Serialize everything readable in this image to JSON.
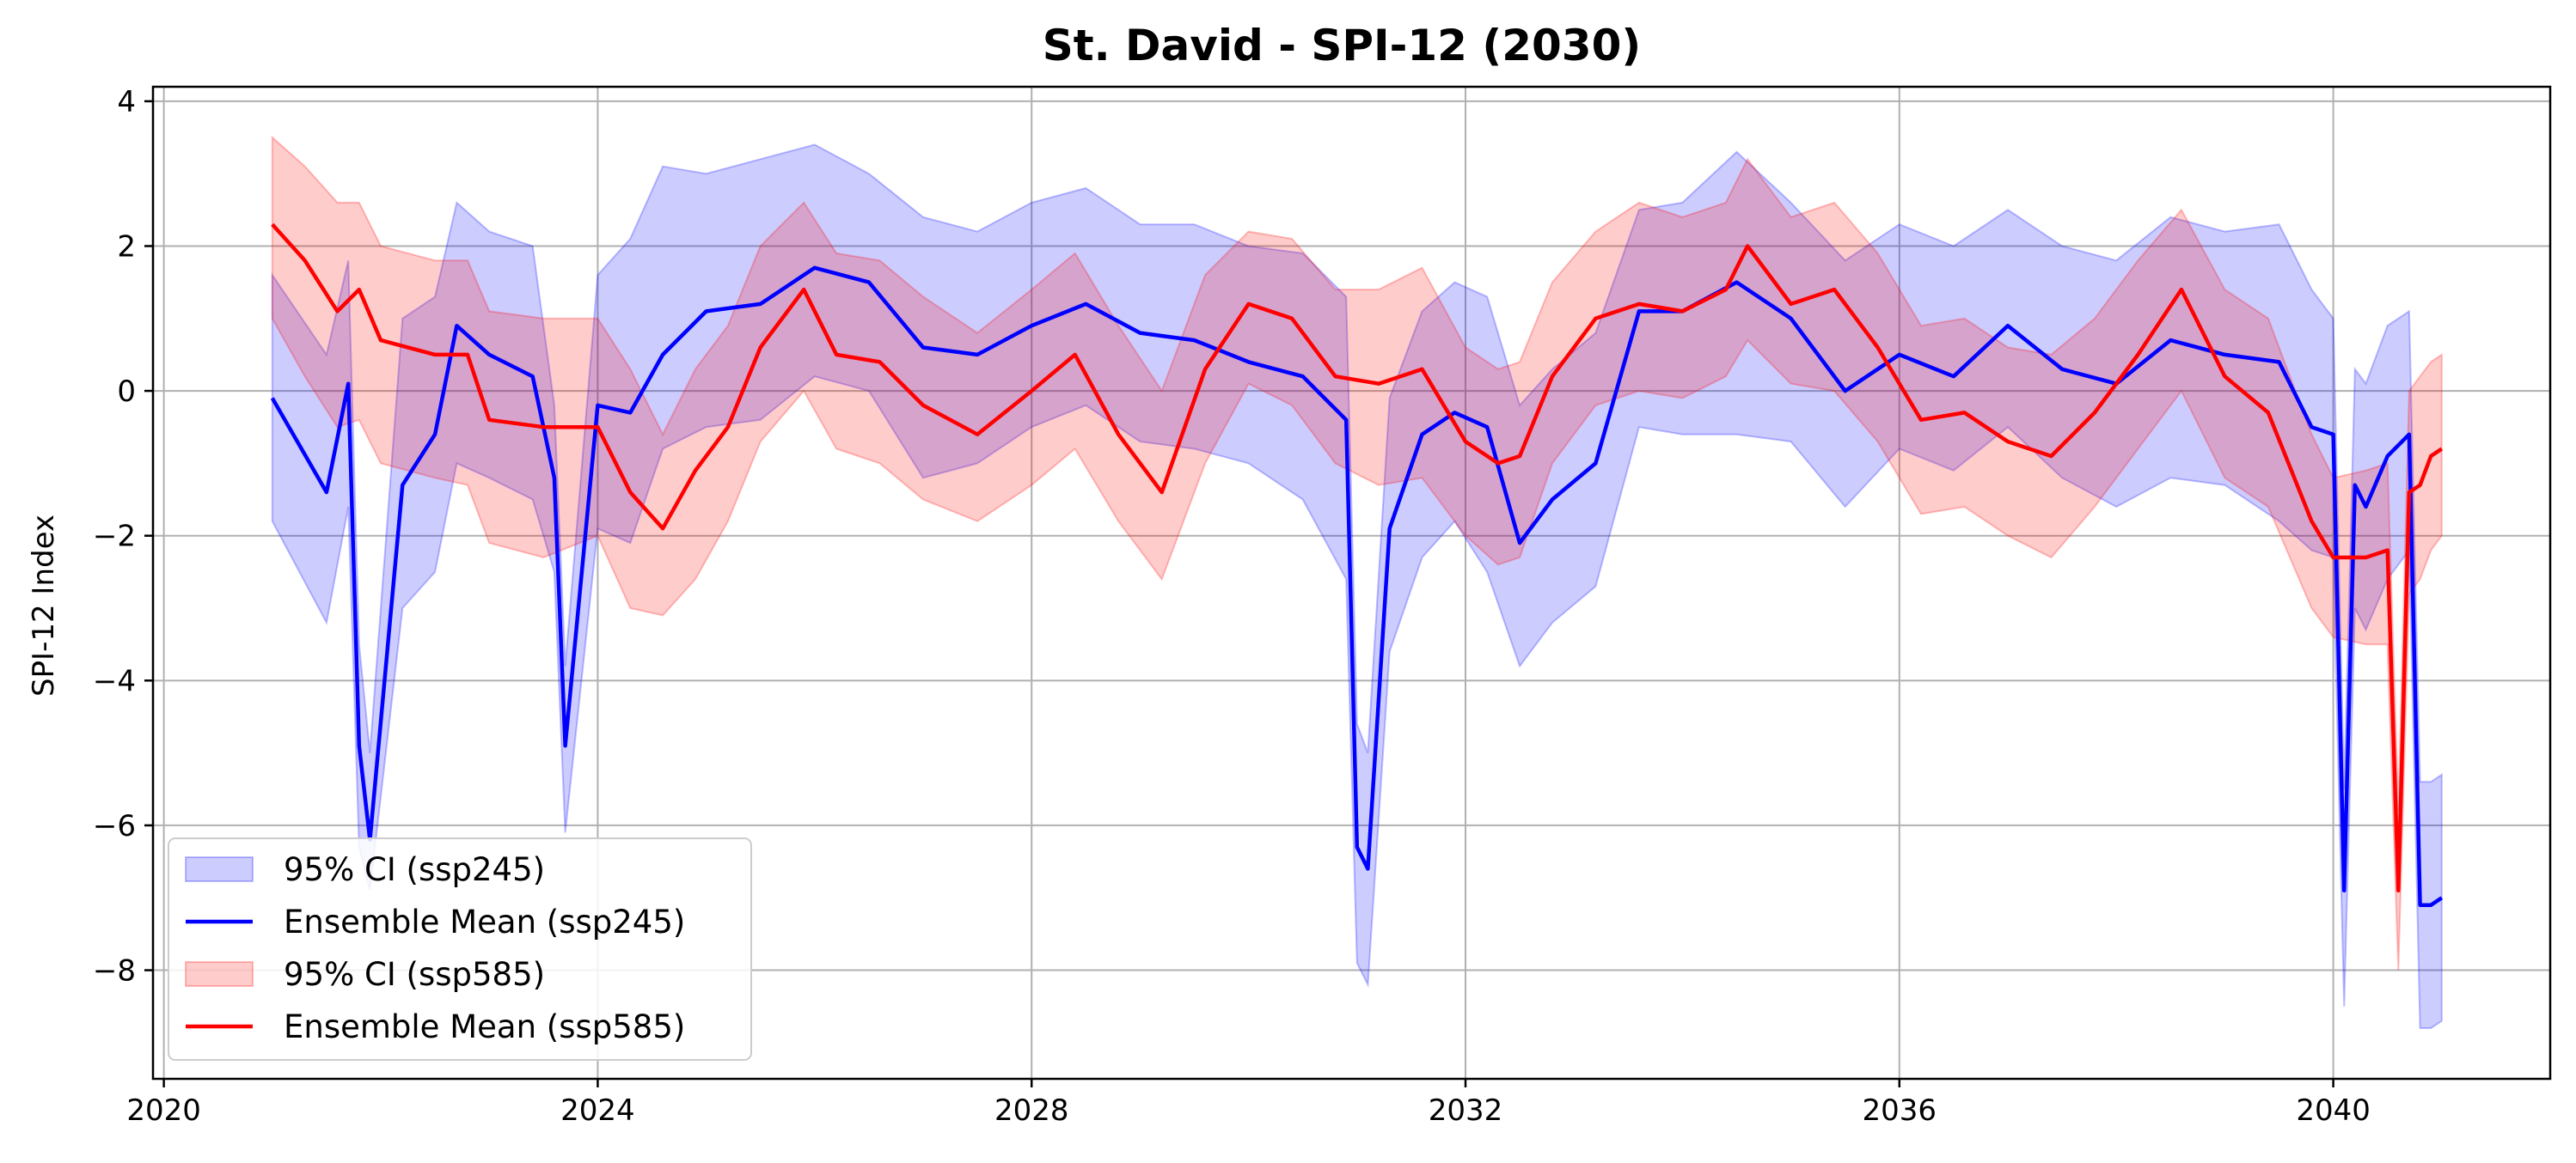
{
  "chart_data": {
    "type": "line",
    "title": "St. David - SPI-12 (2030)",
    "xlabel": "",
    "ylabel": "SPI-12 Index",
    "xlim": [
      2019.9,
      2042.0
    ],
    "ylim": [
      -9.5,
      4.2
    ],
    "x_ticks": [
      2020,
      2024,
      2028,
      2032,
      2036,
      2040
    ],
    "x_tick_labels": [
      "2020",
      "2024",
      "2028",
      "2032",
      "2036",
      "2040"
    ],
    "y_ticks": [
      4,
      2,
      0,
      -2,
      -4,
      -6,
      -8
    ],
    "y_tick_labels": [
      "4",
      "2",
      "0",
      "−2",
      "−4",
      "−6",
      "−8"
    ],
    "grid": true,
    "legend_position": "lower-left",
    "legend": [
      {
        "label": "95% CI (ssp245)",
        "kind": "band",
        "color": "#0000ff"
      },
      {
        "label": "Ensemble Mean (ssp245)",
        "kind": "line",
        "color": "#0000ff"
      },
      {
        "label": "95% CI (ssp585)",
        "kind": "band",
        "color": "#ff0000"
      },
      {
        "label": "Ensemble Mean (ssp585)",
        "kind": "line",
        "color": "#ff0000"
      }
    ],
    "series": [
      {
        "name": "Ensemble Mean (ssp245)",
        "color": "#0000ff",
        "x": [
          2021.0,
          2021.5,
          2021.7,
          2021.8,
          2021.9,
          2022.2,
          2022.5,
          2022.7,
          2023.0,
          2023.4,
          2023.6,
          2023.7,
          2024.0,
          2024.3,
          2024.6,
          2025.0,
          2025.5,
          2026.0,
          2026.5,
          2027.0,
          2027.5,
          2028.0,
          2028.5,
          2029.0,
          2029.5,
          2030.0,
          2030.5,
          2030.9,
          2031.0,
          2031.1,
          2031.3,
          2031.6,
          2031.9,
          2032.2,
          2032.5,
          2032.8,
          2033.2,
          2033.6,
          2034.0,
          2034.5,
          2035.0,
          2035.5,
          2036.0,
          2036.5,
          2037.0,
          2037.5,
          2038.0,
          2038.5,
          2039.0,
          2039.5,
          2039.8,
          2040.0,
          2040.1,
          2040.2,
          2040.3,
          2040.5,
          2040.7,
          2040.8,
          2040.9,
          2041.0
        ],
        "y": [
          -0.1,
          -1.4,
          0.1,
          -4.9,
          -6.2,
          -1.3,
          -0.6,
          0.9,
          0.5,
          0.2,
          -1.2,
          -4.9,
          -0.2,
          -0.3,
          0.5,
          1.1,
          1.2,
          1.7,
          1.5,
          0.6,
          0.5,
          0.9,
          1.2,
          0.8,
          0.7,
          0.4,
          0.2,
          -0.4,
          -6.3,
          -6.6,
          -1.9,
          -0.6,
          -0.3,
          -0.5,
          -2.1,
          -1.5,
          -1.0,
          1.1,
          1.1,
          1.5,
          1.0,
          0.0,
          0.5,
          0.2,
          0.9,
          0.3,
          0.1,
          0.7,
          0.5,
          0.4,
          -0.5,
          -0.6,
          -6.9,
          -1.3,
          -1.6,
          -0.9,
          -0.6,
          -7.1,
          -7.1,
          -7.0
        ]
      },
      {
        "name": "Ensemble Mean (ssp585)",
        "color": "#ff0000",
        "x": [
          2021.0,
          2021.3,
          2021.6,
          2021.8,
          2022.0,
          2022.5,
          2022.8,
          2023.0,
          2023.5,
          2024.0,
          2024.3,
          2024.6,
          2024.9,
          2025.2,
          2025.5,
          2025.9,
          2026.2,
          2026.6,
          2027.0,
          2027.5,
          2028.0,
          2028.4,
          2028.8,
          2029.2,
          2029.6,
          2030.0,
          2030.4,
          2030.8,
          2031.2,
          2031.6,
          2032.0,
          2032.3,
          2032.5,
          2032.8,
          2033.2,
          2033.6,
          2034.0,
          2034.4,
          2034.6,
          2035.0,
          2035.4,
          2035.8,
          2036.2,
          2036.6,
          2037.0,
          2037.4,
          2037.8,
          2038.2,
          2038.6,
          2039.0,
          2039.4,
          2039.8,
          2040.0,
          2040.3,
          2040.5,
          2040.6,
          2040.7,
          2040.8,
          2040.9,
          2041.0
        ],
        "y": [
          2.3,
          1.8,
          1.1,
          1.4,
          0.7,
          0.5,
          0.5,
          -0.4,
          -0.5,
          -0.5,
          -1.4,
          -1.9,
          -1.1,
          -0.5,
          0.6,
          1.4,
          0.5,
          0.4,
          -0.2,
          -0.6,
          0.0,
          0.5,
          -0.6,
          -1.4,
          0.3,
          1.2,
          1.0,
          0.2,
          0.1,
          0.3,
          -0.7,
          -1.0,
          -0.9,
          0.2,
          1.0,
          1.2,
          1.1,
          1.4,
          2.0,
          1.2,
          1.4,
          0.6,
          -0.4,
          -0.3,
          -0.7,
          -0.9,
          -0.3,
          0.5,
          1.4,
          0.2,
          -0.3,
          -1.8,
          -2.3,
          -2.3,
          -2.2,
          -6.9,
          -1.4,
          -1.3,
          -0.9,
          -0.8
        ]
      }
    ],
    "bands": [
      {
        "name": "95% CI (ssp245)",
        "color": "#0000ff",
        "x": [
          2021.0,
          2021.5,
          2021.7,
          2021.8,
          2021.9,
          2022.2,
          2022.5,
          2022.7,
          2023.0,
          2023.4,
          2023.6,
          2023.7,
          2024.0,
          2024.3,
          2024.6,
          2025.0,
          2025.5,
          2026.0,
          2026.5,
          2027.0,
          2027.5,
          2028.0,
          2028.5,
          2029.0,
          2029.5,
          2030.0,
          2030.5,
          2030.9,
          2031.0,
          2031.1,
          2031.3,
          2031.6,
          2031.9,
          2032.2,
          2032.5,
          2032.8,
          2033.2,
          2033.6,
          2034.0,
          2034.5,
          2035.0,
          2035.5,
          2036.0,
          2036.5,
          2037.0,
          2037.5,
          2038.0,
          2038.5,
          2039.0,
          2039.5,
          2039.8,
          2040.0,
          2040.1,
          2040.2,
          2040.3,
          2040.5,
          2040.7,
          2040.8,
          2040.9,
          2041.0
        ],
        "lower": [
          -1.8,
          -3.2,
          -1.6,
          -6.3,
          -6.9,
          -3.0,
          -2.5,
          -1.0,
          -1.2,
          -1.5,
          -2.5,
          -6.1,
          -1.9,
          -2.1,
          -0.8,
          -0.5,
          -0.4,
          0.2,
          0.0,
          -1.2,
          -1.0,
          -0.5,
          -0.2,
          -0.7,
          -0.8,
          -1.0,
          -1.5,
          -2.6,
          -7.9,
          -8.2,
          -3.6,
          -2.3,
          -1.8,
          -2.5,
          -3.8,
          -3.2,
          -2.7,
          -0.5,
          -0.6,
          -0.6,
          -0.7,
          -1.6,
          -0.8,
          -1.1,
          -0.5,
          -1.2,
          -1.6,
          -1.2,
          -1.3,
          -1.8,
          -2.2,
          -2.3,
          -8.5,
          -3.0,
          -3.3,
          -2.6,
          -2.2,
          -8.8,
          -8.8,
          -8.7
        ],
        "upper": [
          1.6,
          0.5,
          1.8,
          -3.5,
          -5.0,
          1.0,
          1.3,
          2.6,
          2.2,
          2.0,
          -0.2,
          -3.8,
          1.6,
          2.1,
          3.1,
          3.0,
          3.2,
          3.4,
          3.0,
          2.4,
          2.2,
          2.6,
          2.8,
          2.3,
          2.3,
          2.0,
          1.9,
          1.3,
          -4.6,
          -5.0,
          -0.1,
          1.1,
          1.5,
          1.3,
          -0.2,
          0.3,
          0.8,
          2.5,
          2.6,
          3.3,
          2.6,
          1.8,
          2.3,
          2.0,
          2.5,
          2.0,
          1.8,
          2.4,
          2.2,
          2.3,
          1.4,
          1.0,
          -5.5,
          0.3,
          0.1,
          0.9,
          1.1,
          -5.4,
          -5.4,
          -5.3
        ]
      },
      {
        "name": "95% CI (ssp585)",
        "color": "#ff0000",
        "x": [
          2021.0,
          2021.3,
          2021.6,
          2021.8,
          2022.0,
          2022.5,
          2022.8,
          2023.0,
          2023.5,
          2024.0,
          2024.3,
          2024.6,
          2024.9,
          2025.2,
          2025.5,
          2025.9,
          2026.2,
          2026.6,
          2027.0,
          2027.5,
          2028.0,
          2028.4,
          2028.8,
          2029.2,
          2029.6,
          2030.0,
          2030.4,
          2030.8,
          2031.2,
          2031.6,
          2032.0,
          2032.3,
          2032.5,
          2032.8,
          2033.2,
          2033.6,
          2034.0,
          2034.4,
          2034.6,
          2035.0,
          2035.4,
          2035.8,
          2036.2,
          2036.6,
          2037.0,
          2037.4,
          2037.8,
          2038.2,
          2038.6,
          2039.0,
          2039.4,
          2039.8,
          2040.0,
          2040.3,
          2040.5,
          2040.6,
          2040.7,
          2040.8,
          2040.9,
          2041.0
        ],
        "lower": [
          1.0,
          0.2,
          -0.5,
          -0.4,
          -1.0,
          -1.2,
          -1.3,
          -2.1,
          -2.3,
          -2.0,
          -3.0,
          -3.1,
          -2.6,
          -1.8,
          -0.7,
          0.0,
          -0.8,
          -1.0,
          -1.5,
          -1.8,
          -1.3,
          -0.8,
          -1.8,
          -2.6,
          -1.0,
          0.1,
          -0.2,
          -1.0,
          -1.3,
          -1.2,
          -2.0,
          -2.4,
          -2.3,
          -1.0,
          -0.2,
          0.0,
          -0.1,
          0.2,
          0.7,
          0.1,
          0.0,
          -0.7,
          -1.7,
          -1.6,
          -2.0,
          -2.3,
          -1.6,
          -0.8,
          0.0,
          -1.2,
          -1.6,
          -3.0,
          -3.4,
          -3.5,
          -3.5,
          -8.0,
          -2.8,
          -2.6,
          -2.2,
          -2.0
        ],
        "upper": [
          3.5,
          3.1,
          2.6,
          2.6,
          2.0,
          1.8,
          1.8,
          1.1,
          1.0,
          1.0,
          0.3,
          -0.6,
          0.3,
          0.9,
          2.0,
          2.6,
          1.9,
          1.8,
          1.3,
          0.8,
          1.4,
          1.9,
          0.9,
          0.0,
          1.6,
          2.2,
          2.1,
          1.4,
          1.4,
          1.7,
          0.6,
          0.3,
          0.4,
          1.5,
          2.2,
          2.6,
          2.4,
          2.6,
          3.2,
          2.4,
          2.6,
          1.9,
          0.9,
          1.0,
          0.6,
          0.5,
          1.0,
          1.8,
          2.5,
          1.4,
          1.0,
          -0.6,
          -1.2,
          -1.1,
          -1.0,
          -5.8,
          0.0,
          0.2,
          0.4,
          0.5
        ]
      }
    ]
  }
}
